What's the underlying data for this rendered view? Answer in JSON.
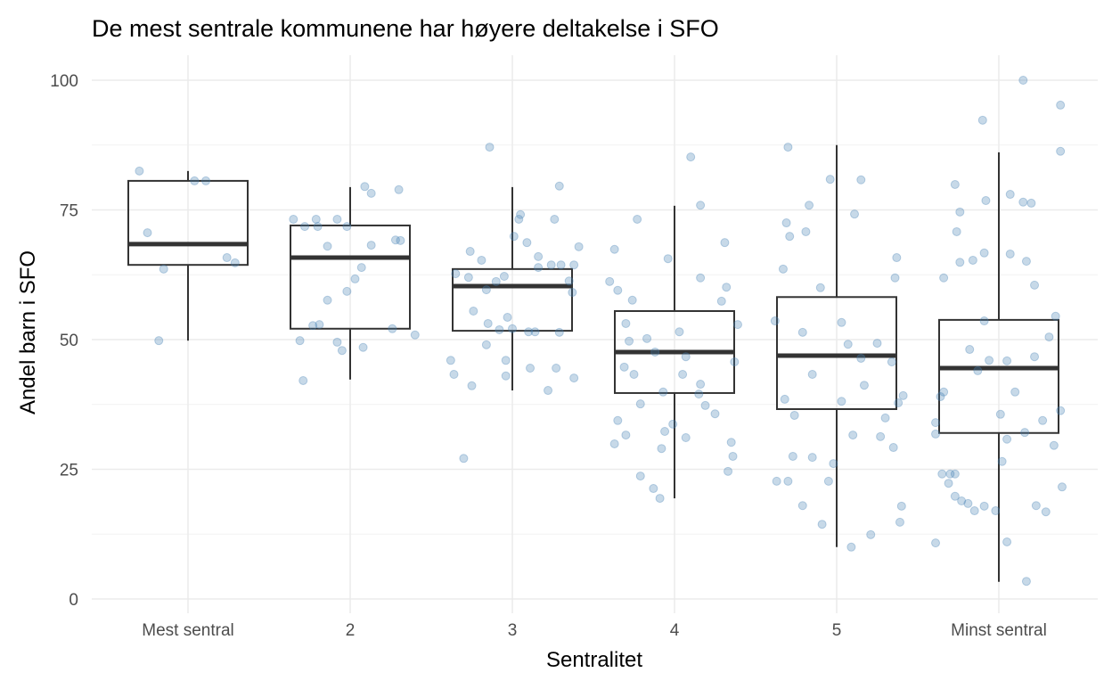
{
  "chart_data": {
    "type": "boxplot",
    "title": "De mest sentrale kommunene har høyere deltakelse i SFO",
    "xlabel": "Sentralitet",
    "ylabel": "Andel barn i SFO",
    "ylim": [
      0,
      100
    ],
    "yticks": [
      0,
      25,
      50,
      75,
      100
    ],
    "ytick_labels": [
      "0",
      "25",
      "50",
      "75",
      "100"
    ],
    "categories": [
      "Mest sentral",
      "2",
      "3",
      "4",
      "5",
      "Minst sentral"
    ],
    "grid": true,
    "point_color": "#4682b4",
    "box_color": "#333333",
    "boxes": [
      {
        "whisker_low": 49.8,
        "q1": 64.4,
        "median": 68.4,
        "q3": 80.6,
        "whisker_high": 82.5
      },
      {
        "whisker_low": 42.3,
        "q1": 52.1,
        "median": 65.8,
        "q3": 72.0,
        "whisker_high": 79.4
      },
      {
        "whisker_low": 40.2,
        "q1": 51.7,
        "median": 60.3,
        "q3": 63.6,
        "whisker_high": 79.4
      },
      {
        "whisker_low": 19.4,
        "q1": 39.7,
        "median": 47.6,
        "q3": 55.5,
        "whisker_high": 75.8
      },
      {
        "whisker_low": 10.0,
        "q1": 36.6,
        "median": 46.9,
        "q3": 58.2,
        "whisker_high": 87.5
      },
      {
        "whisker_low": 3.3,
        "q1": 32.0,
        "median": 44.5,
        "q3": 53.8,
        "whisker_high": 86.1
      }
    ],
    "points": [
      [
        [
          -0.3,
          82.5
        ],
        [
          -0.25,
          70.6
        ],
        [
          -0.15,
          63.6
        ],
        [
          -0.18,
          49.8
        ],
        [
          0.04,
          80.6
        ],
        [
          0.11,
          80.6
        ],
        [
          0.24,
          65.8
        ],
        [
          0.29,
          64.8
        ]
      ],
      [
        [
          -0.35,
          73.2
        ],
        [
          -0.28,
          71.8
        ],
        [
          -0.21,
          73.2
        ],
        [
          -0.2,
          71.8
        ],
        [
          -0.14,
          57.6
        ],
        [
          -0.31,
          49.8
        ],
        [
          -0.29,
          42.1
        ],
        [
          -0.23,
          52.7
        ],
        [
          -0.19,
          52.9
        ],
        [
          -0.14,
          68.0
        ],
        [
          -0.08,
          73.2
        ],
        [
          -0.02,
          59.3
        ],
        [
          -0.02,
          71.8
        ],
        [
          0.03,
          61.7
        ],
        [
          0.07,
          63.9
        ],
        [
          0.09,
          79.5
        ],
        [
          0.13,
          78.2
        ],
        [
          0.13,
          68.2
        ],
        [
          -0.08,
          49.5
        ],
        [
          -0.05,
          47.9
        ],
        [
          0.08,
          48.5
        ],
        [
          0.26,
          52.1
        ],
        [
          0.28,
          69.2
        ],
        [
          0.31,
          69.1
        ],
        [
          0.3,
          78.9
        ],
        [
          0.4,
          50.9
        ]
      ],
      [
        [
          -0.14,
          87.1
        ],
        [
          -0.3,
          27.1
        ],
        [
          -0.38,
          46.0
        ],
        [
          -0.25,
          41.1
        ],
        [
          -0.36,
          43.3
        ],
        [
          -0.16,
          49.0
        ],
        [
          -0.24,
          55.5
        ],
        [
          -0.26,
          67.0
        ],
        [
          -0.19,
          65.3
        ],
        [
          -0.35,
          62.7
        ],
        [
          -0.27,
          62.0
        ],
        [
          -0.16,
          59.6
        ],
        [
          -0.1,
          61.2
        ],
        [
          -0.05,
          62.2
        ],
        [
          -0.03,
          54.3
        ],
        [
          0.0,
          52.1
        ],
        [
          -0.04,
          46.0
        ],
        [
          -0.04,
          43.0
        ],
        [
          0.05,
          74.1
        ],
        [
          0.04,
          73.2
        ],
        [
          0.01,
          69.9
        ],
        [
          0.1,
          51.5
        ],
        [
          0.14,
          51.5
        ],
        [
          0.16,
          66.0
        ],
        [
          0.09,
          68.7
        ],
        [
          0.16,
          63.9
        ],
        [
          0.24,
          64.4
        ],
        [
          0.11,
          44.5
        ],
        [
          0.22,
          40.2
        ],
        [
          0.26,
          73.2
        ],
        [
          0.29,
          79.6
        ],
        [
          0.27,
          44.5
        ],
        [
          0.29,
          51.4
        ],
        [
          0.3,
          64.4
        ],
        [
          0.35,
          61.3
        ],
        [
          0.37,
          59.1
        ],
        [
          0.38,
          64.4
        ],
        [
          0.41,
          67.9
        ],
        [
          0.38,
          42.6
        ],
        [
          -0.15,
          53.1
        ],
        [
          -0.08,
          51.9
        ]
      ],
      [
        [
          -0.37,
          67.4
        ],
        [
          -0.4,
          61.2
        ],
        [
          -0.35,
          59.5
        ],
        [
          -0.37,
          29.9
        ],
        [
          -0.35,
          34.4
        ],
        [
          -0.3,
          31.6
        ],
        [
          -0.23,
          73.2
        ],
        [
          -0.21,
          23.7
        ],
        [
          -0.13,
          21.3
        ],
        [
          -0.09,
          19.4
        ],
        [
          -0.28,
          49.7
        ],
        [
          -0.31,
          44.7
        ],
        [
          -0.25,
          43.3
        ],
        [
          -0.21,
          37.6
        ],
        [
          -0.26,
          57.6
        ],
        [
          -0.3,
          53.1
        ],
        [
          -0.17,
          50.2
        ],
        [
          -0.08,
          29.0
        ],
        [
          -0.06,
          32.3
        ],
        [
          -0.04,
          65.6
        ],
        [
          -0.01,
          33.7
        ],
        [
          0.07,
          31.1
        ],
        [
          0.07,
          46.7
        ],
        [
          0.05,
          43.3
        ],
        [
          0.1,
          85.2
        ],
        [
          0.16,
          75.9
        ],
        [
          0.15,
          39.5
        ],
        [
          0.19,
          37.3
        ],
        [
          0.16,
          61.9
        ],
        [
          0.16,
          41.4
        ],
        [
          0.25,
          35.7
        ],
        [
          0.29,
          57.4
        ],
        [
          0.31,
          68.7
        ],
        [
          0.32,
          60.1
        ],
        [
          0.35,
          30.2
        ],
        [
          0.36,
          27.5
        ],
        [
          0.37,
          45.7
        ],
        [
          0.39,
          52.9
        ],
        [
          0.33,
          24.6
        ],
        [
          -0.07,
          39.9
        ],
        [
          0.03,
          51.5
        ],
        [
          -0.12,
          47.6
        ]
      ],
      [
        [
          -0.3,
          87.1
        ],
        [
          -0.31,
          72.5
        ],
        [
          -0.29,
          69.9
        ],
        [
          -0.19,
          70.8
        ],
        [
          -0.17,
          75.9
        ],
        [
          -0.33,
          63.6
        ],
        [
          -0.37,
          22.7
        ],
        [
          -0.3,
          22.7
        ],
        [
          -0.27,
          27.5
        ],
        [
          -0.21,
          18.0
        ],
        [
          -0.15,
          27.3
        ],
        [
          -0.09,
          14.4
        ],
        [
          -0.05,
          22.7
        ],
        [
          -0.02,
          26.1
        ],
        [
          0.09,
          10.0
        ],
        [
          0.1,
          31.6
        ],
        [
          0.11,
          74.2
        ],
        [
          -0.04,
          80.9
        ],
        [
          0.15,
          80.8
        ],
        [
          0.21,
          12.4
        ],
        [
          0.27,
          31.3
        ],
        [
          0.35,
          29.2
        ],
        [
          0.39,
          14.8
        ],
        [
          0.4,
          17.9
        ],
        [
          0.37,
          65.8
        ],
        [
          0.36,
          61.9
        ],
        [
          0.38,
          37.8
        ],
        [
          0.41,
          39.2
        ],
        [
          0.3,
          34.9
        ],
        [
          -0.38,
          53.6
        ],
        [
          -0.21,
          51.4
        ],
        [
          -0.15,
          43.3
        ],
        [
          -0.1,
          60.0
        ],
        [
          0.03,
          53.3
        ],
        [
          0.03,
          38.1
        ],
        [
          0.07,
          49.1
        ],
        [
          0.15,
          46.4
        ],
        [
          0.17,
          41.2
        ],
        [
          0.25,
          49.3
        ],
        [
          0.34,
          45.7
        ],
        [
          -0.26,
          35.4
        ],
        [
          -0.32,
          38.5
        ]
      ],
      [
        [
          -0.39,
          10.8
        ],
        [
          -0.35,
          24.1
        ],
        [
          -0.31,
          22.3
        ],
        [
          -0.3,
          24.1
        ],
        [
          -0.27,
          24.1
        ],
        [
          -0.27,
          19.8
        ],
        [
          -0.23,
          18.9
        ],
        [
          -0.19,
          18.4
        ],
        [
          -0.39,
          34.0
        ],
        [
          -0.39,
          31.8
        ],
        [
          -0.36,
          39.0
        ],
        [
          -0.34,
          39.9
        ],
        [
          -0.26,
          70.8
        ],
        [
          -0.24,
          74.6
        ],
        [
          -0.27,
          79.9
        ],
        [
          -0.34,
          61.9
        ],
        [
          -0.24,
          64.9
        ],
        [
          -0.16,
          65.3
        ],
        [
          -0.09,
          66.7
        ],
        [
          -0.08,
          76.8
        ],
        [
          -0.1,
          92.3
        ],
        [
          -0.15,
          17.0
        ],
        [
          -0.09,
          17.9
        ],
        [
          -0.02,
          17.0
        ],
        [
          0.02,
          26.5
        ],
        [
          0.05,
          11.0
        ],
        [
          0.17,
          3.4
        ],
        [
          0.15,
          100.0
        ],
        [
          0.07,
          78.0
        ],
        [
          0.15,
          76.5
        ],
        [
          0.2,
          76.3
        ],
        [
          0.07,
          66.5
        ],
        [
          0.17,
          65.1
        ],
        [
          0.22,
          60.5
        ],
        [
          0.38,
          95.2
        ],
        [
          0.38,
          86.3
        ],
        [
          0.38,
          36.3
        ],
        [
          0.39,
          21.6
        ],
        [
          0.29,
          16.8
        ],
        [
          0.23,
          18.0
        ],
        [
          0.34,
          29.6
        ],
        [
          0.27,
          34.4
        ],
        [
          0.16,
          32.1
        ],
        [
          0.05,
          30.8
        ],
        [
          0.01,
          35.6
        ],
        [
          0.1,
          39.9
        ],
        [
          -0.18,
          48.1
        ],
        [
          -0.13,
          44.0
        ],
        [
          -0.06,
          46.0
        ],
        [
          0.05,
          45.9
        ],
        [
          0.22,
          46.7
        ],
        [
          0.31,
          50.5
        ],
        [
          0.35,
          54.5
        ],
        [
          -0.09,
          53.6
        ]
      ]
    ]
  }
}
